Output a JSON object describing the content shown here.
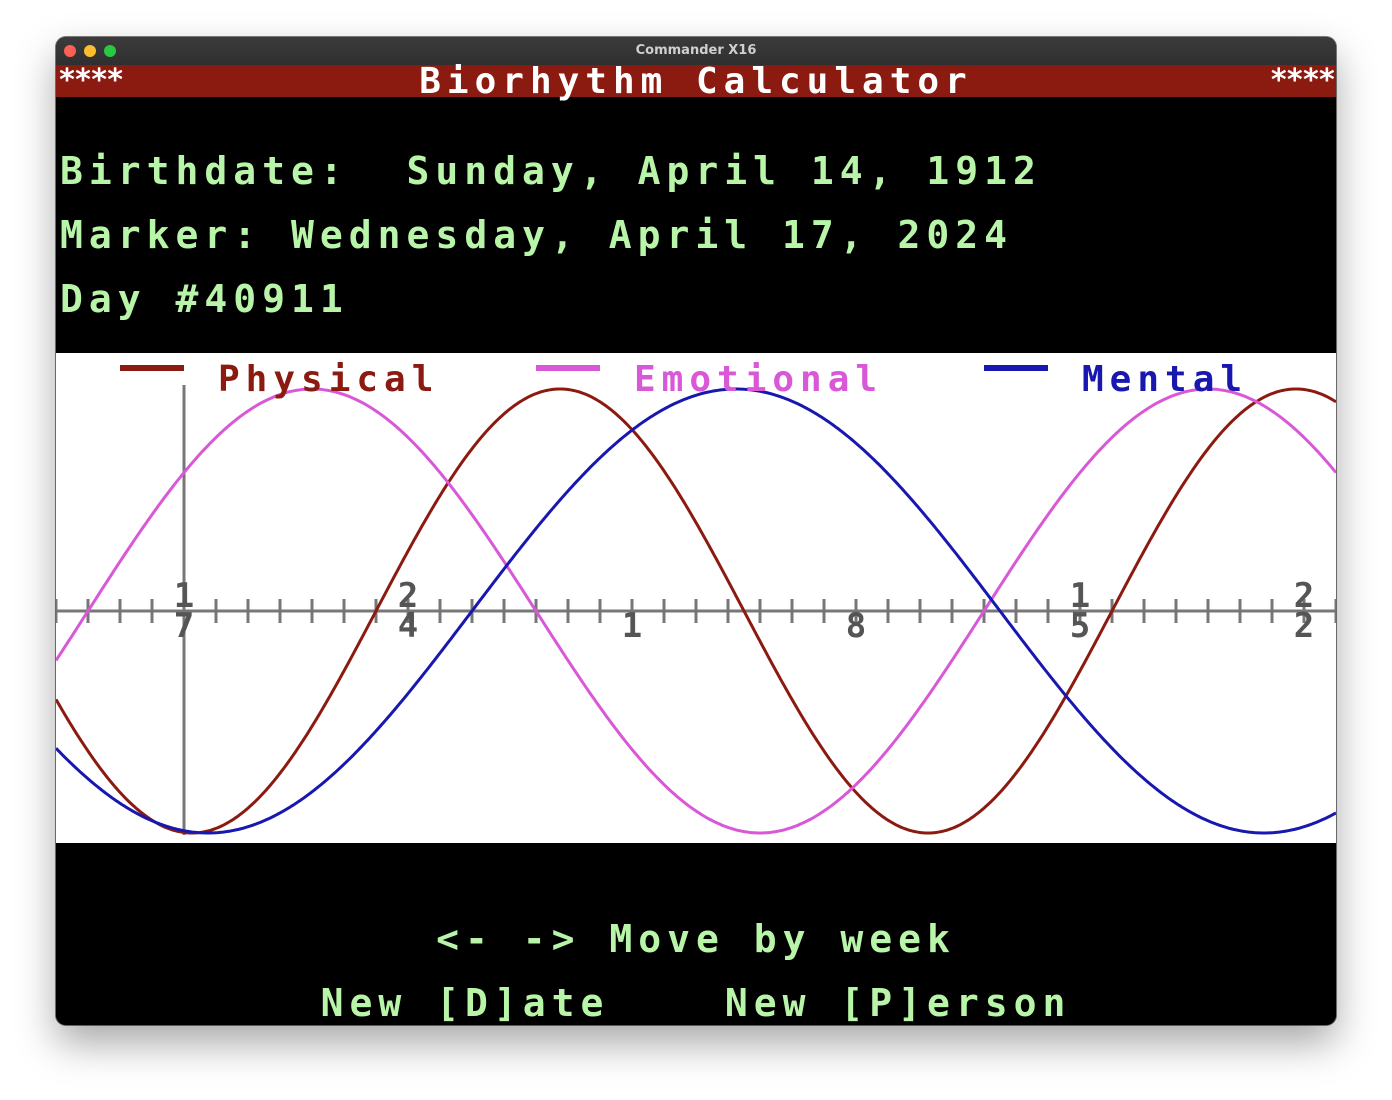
{
  "window": {
    "title": "Commander X16"
  },
  "banner": {
    "left_decoration": "****",
    "title": "Biorhythm Calculator",
    "right_decoration": "****"
  },
  "info": {
    "birthdate_label": "Birthdate:",
    "birthdate_value": "Sunday, April 14, 1912",
    "marker_label": "Marker:",
    "marker_value": "Wednesday, April 17, 2024",
    "day_label": "Day #",
    "day_number": "40911"
  },
  "chart_data": {
    "type": "line",
    "series": [
      {
        "name": "Physical",
        "color": "#8b1a10",
        "period_days": 23
      },
      {
        "name": "Emotional",
        "color": "#d858d8",
        "period_days": 28
      },
      {
        "name": "Mental",
        "color": "#1818b0",
        "period_days": 33
      }
    ],
    "day_number": 40911,
    "x_range_days": [
      -4,
      36
    ],
    "ylim": [
      -1,
      1
    ],
    "tick_labels": [
      {
        "top": "1",
        "bottom": "7"
      },
      {
        "top": "2",
        "bottom": "4"
      },
      {
        "top": "",
        "bottom": "1"
      },
      {
        "top": "",
        "bottom": "8"
      },
      {
        "top": "1",
        "bottom": "5"
      },
      {
        "top": "2",
        "bottom": "2"
      }
    ]
  },
  "footer": {
    "nav_hint": "<- -> Move by week",
    "new_date": "New [D]ate",
    "new_person": "New [P]erson"
  },
  "colors": {
    "screen_bg": "#000000",
    "text_green": "#b8f5a8",
    "banner_red": "#8b1a10",
    "graph_bg": "#ffffff",
    "axis_gray": "#777777"
  }
}
